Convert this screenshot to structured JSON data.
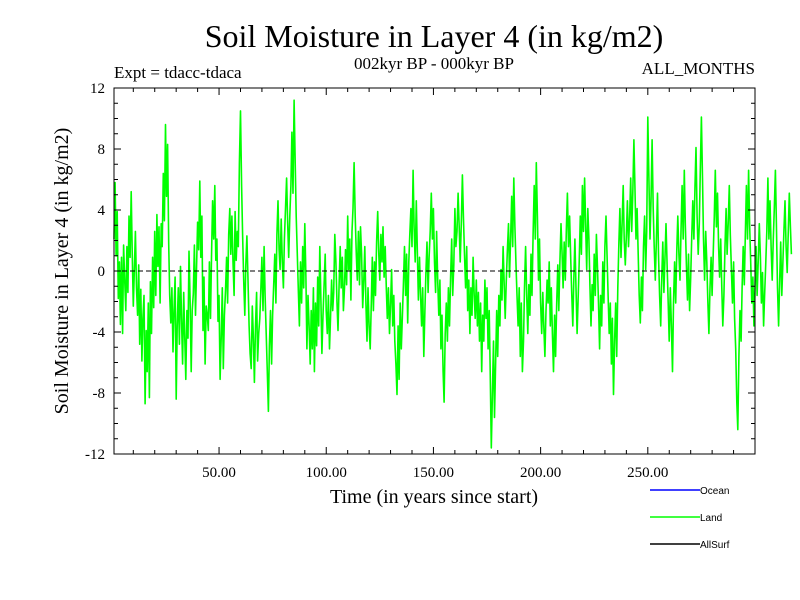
{
  "chart_data": {
    "type": "line",
    "title": "Soil Moisture in Layer 4 (in kg/m2)",
    "subtitle": "002kyr BP - 000kyr BP",
    "experiment_label": "Expt = tdacc-tdaca",
    "period_label": "ALL_MONTHS",
    "xlabel": "Time (in years since start)",
    "ylabel": "Soil Moisture in Layer 4 (in kg/m2)",
    "xlim": [
      1,
      300
    ],
    "ylim": [
      -12,
      12
    ],
    "x_ticks": [
      50,
      100,
      150,
      200,
      250
    ],
    "x_tick_labels": [
      "50.00",
      "100.00",
      "150.00",
      "200.00",
      "250.00"
    ],
    "y_ticks": [
      -12,
      -8,
      -4,
      0,
      4,
      8,
      12
    ],
    "y_tick_labels": [
      "-12",
      "-8",
      "-4",
      "0",
      "4",
      "8",
      "12"
    ],
    "zero_line": true,
    "legend_position": "bottom-right",
    "series": [
      {
        "name": "Land",
        "color": "#00ff00",
        "x_start": 1,
        "x_step": 0.5,
        "values": [
          2.1,
          5.8,
          1.0,
          3.9,
          -1.8,
          0.6,
          -3.5,
          0.9,
          -4.1,
          1.7,
          -0.6,
          -2.6,
          1.6,
          -1.4,
          3.6,
          0.9,
          5.2,
          1.3,
          -2.3,
          0.2,
          2.6,
          -1.1,
          -2.9,
          0.4,
          -4.8,
          -1.2,
          -5.9,
          -3.1,
          -1.6,
          -8.7,
          -3.9,
          -6.6,
          -2.1,
          -8.3,
          -0.7,
          -4.1,
          0.9,
          -2.4,
          2.6,
          -1.6,
          3.7,
          0.3,
          2.9,
          -2.1,
          3.1,
          1.6,
          6.4,
          3.3,
          9.6,
          4.9,
          8.3,
          1.8,
          -1.6,
          -3.4,
          -1.1,
          -5.3,
          -2.6,
          -0.4,
          -8.4,
          -3.6,
          -1.1,
          -4.8,
          0.3,
          -3.1,
          -6.1,
          -1.4,
          -4.2,
          -7.1,
          -2.6,
          -4.4,
          1.3,
          -1.9,
          -6.6,
          -2.6,
          -1.5,
          1.7,
          -2.9,
          0.1,
          3.2,
          1.4,
          5.9,
          0.9,
          3.6,
          -3.9,
          -0.4,
          -6.1,
          -2.3,
          -2.9,
          -3.9,
          0.6,
          -3.1,
          0.9,
          4.6,
          2.1,
          5.6,
          0.7,
          2.1,
          -3.3,
          -1.6,
          -7.1,
          -4.4,
          -1.1,
          -6.4,
          -2.9,
          -1.3,
          0.9,
          -2.1,
          2.4,
          4.1,
          1.1,
          3.6,
          0.6,
          -1.6,
          3.9,
          0.7,
          2.6,
          1.6,
          7.1,
          10.5,
          5.6,
          2.4,
          -0.6,
          -2.9,
          0.4,
          2.3,
          -0.6,
          -3.6,
          -5.4,
          -6.4,
          -2.3,
          -4.2,
          -7.3,
          -3.6,
          -1.4,
          -5.9,
          -4.1,
          -3.1,
          -1.1,
          0.9,
          -2.6,
          1.6,
          -1.6,
          -4.1,
          -6.6,
          -9.2,
          -4.9,
          -2.6,
          -6.1,
          -2.9,
          -0.9,
          1.1,
          -2.1,
          2.4,
          4.6,
          1.4,
          0.1,
          3.4,
          0.6,
          -1.1,
          2.1,
          4.1,
          6.1,
          3.3,
          0.9,
          3.6,
          5.6,
          9.1,
          5.1,
          11.2,
          7.1,
          3.6,
          1.1,
          -1.4,
          -3.6,
          0.6,
          -2.1,
          1.6,
          -1.1,
          3.1,
          -0.4,
          -5.1,
          -1.6,
          -3.6,
          -6.1,
          -2.6,
          -5.1,
          -1.1,
          -6.6,
          -2.1,
          -4.9,
          -0.4,
          -3.6,
          1.6,
          -1.9,
          -5.4,
          -2.9,
          -0.9,
          1.1,
          -2.6,
          -4.1,
          -1.6,
          -5.1,
          -3.1,
          -0.6,
          -2.6,
          -1.4,
          2.4,
          0.6,
          -2.1,
          -3.9,
          -0.9,
          1.6,
          -1.1,
          0.9,
          -2.6,
          -1.1,
          1.4,
          -0.9,
          3.6,
          0.1,
          2.1,
          -1.9,
          2.6,
          4.1,
          7.1,
          3.6,
          1.1,
          -0.6,
          2.6,
          -0.9,
          2.9,
          1.1,
          -2.4,
          -0.6,
          1.6,
          -2.1,
          -4.6,
          -1.1,
          -3.6,
          -5.1,
          -2.1,
          0.9,
          -2.6,
          0.6,
          -1.6,
          1.9,
          3.9,
          1.1,
          -0.6,
          2.4,
          0.6,
          2.9,
          -0.4,
          1.6,
          -1.1,
          -3.1,
          -1.1,
          -4.1,
          -2.1,
          0.1,
          -3.6,
          -1.6,
          -4.6,
          -6.1,
          -8.1,
          -3.6,
          -7.1,
          -2.1,
          -5.1,
          -3.1,
          -0.9,
          1.6,
          -1.6,
          1.1,
          -3.4,
          0.6,
          2.4,
          4.1,
          1.6,
          6.6,
          2.9,
          0.6,
          4.6,
          1.4,
          -1.9,
          0.9,
          -1.6,
          -3.6,
          -1.1,
          -5.6,
          -2.6,
          -0.1,
          1.9,
          -1.4,
          0.9,
          2.6,
          5.1,
          2.1,
          4.1,
          0.6,
          -1.4,
          2.6,
          -0.6,
          -2.9,
          -0.6,
          -5.1,
          -2.9,
          -6.6,
          -8.6,
          -4.1,
          -2.1,
          -4.6,
          -1.1,
          -3.6,
          -0.4,
          2.1,
          -1.6,
          0.4,
          4.1,
          1.6,
          2.6,
          5.1,
          2.9,
          0.6,
          3.1,
          6.3,
          3.6,
          1.1,
          -1.1,
          1.6,
          -2.6,
          -0.6,
          -4.1,
          -1.1,
          -2.9,
          0.9,
          -1.6,
          -3.1,
          -0.6,
          -3.6,
          -1.4,
          -4.6,
          -2.1,
          -6.6,
          -2.9,
          -4.6,
          -0.6,
          -3.1,
          -1.1,
          -5.1,
          -2.6,
          -6.6,
          -11.6,
          -8.1,
          -4.6,
          -9.6,
          -6.1,
          -2.6,
          -5.6,
          -1.6,
          -3.6,
          0.1,
          -1.9,
          1.6,
          -0.9,
          -3.1,
          -0.6,
          1.4,
          3.1,
          -0.4,
          2.1,
          4.9,
          1.6,
          6.1,
          2.9,
          0.4,
          -1.6,
          -3.6,
          -1.1,
          -5.6,
          -2.1,
          -6.6,
          -4.6,
          -1.1,
          1.6,
          -1.6,
          -4.1,
          -0.9,
          -2.9,
          1.1,
          -1.6,
          2.4,
          5.6,
          2.1,
          7.1,
          3.6,
          -0.6,
          2.1,
          -2.1,
          -4.1,
          -1.4,
          -3.6,
          -5.6,
          -2.6,
          -0.6,
          -2.1,
          0.6,
          -3.6,
          -1.1,
          -4.1,
          -6.6,
          -2.9,
          -5.6,
          -2.1,
          0.4,
          -2.6,
          0.6,
          3.1,
          1.1,
          -1.1,
          1.9,
          -0.6,
          2.6,
          5.1,
          1.6,
          3.6,
          1.1,
          -1.4,
          -3.6,
          -0.6,
          2.1,
          -1.1,
          -4.1,
          -1.9,
          0.6,
          3.6,
          1.1,
          5.6,
          2.6,
          6.1,
          3.1,
          0.1,
          4.1,
          2.1,
          -0.9,
          -3.6,
          -0.9,
          -2.6,
          1.1,
          -1.6,
          2.4,
          0.4,
          -2.1,
          -5.1,
          -1.6,
          -3.6,
          0.6,
          -2.1,
          1.6,
          3.6,
          0.9,
          -1.6,
          -4.1,
          -2.1,
          -6.1,
          -3.1,
          -8.1,
          -4.6,
          -2.1,
          -5.6,
          -1.1,
          1.9,
          4.1,
          0.9,
          3.1,
          5.6,
          2.1,
          0.4,
          2.4,
          4.6,
          1.6,
          3.4,
          6.1,
          2.6,
          5.1,
          8.6,
          5.6,
          2.1,
          4.1,
          1.1,
          -1.6,
          -3.4,
          -0.4,
          -2.6,
          1.6,
          3.6,
          0.1,
          2.6,
          10.1,
          6.1,
          2.1,
          4.6,
          8.6,
          4.1,
          1.6,
          -0.6,
          2.1,
          5.1,
          1.1,
          -1.6,
          -3.6,
          -0.6,
          1.9,
          -1.4,
          0.9,
          3.1,
          0.4,
          -2.1,
          -4.6,
          -1.1,
          -3.6,
          -6.6,
          -2.1,
          0.6,
          -2.1,
          1.4,
          3.6,
          1.1,
          -0.6,
          2.6,
          5.6,
          2.1,
          6.6,
          3.1,
          0.4,
          -1.9,
          1.1,
          -2.6,
          -0.4,
          2.4,
          4.6,
          2.1,
          5.6,
          8.1,
          3.6,
          1.1,
          3.1,
          6.6,
          10.1,
          6.1,
          2.1,
          -0.6,
          2.6,
          0.6,
          -1.9,
          -4.1,
          -1.1,
          0.9,
          -1.6,
          1.1,
          3.6,
          6.6,
          2.9,
          5.1,
          1.6,
          -0.4,
          2.1,
          -1.1,
          -3.6,
          -1.6,
          1.6,
          4.1,
          1.1,
          3.1,
          5.6,
          2.4,
          0.1,
          -2.1,
          0.6,
          -3.1,
          -5.1,
          -8.6,
          -10.4,
          -5.6,
          -2.6,
          -4.6,
          -1.1,
          1.6,
          -0.9,
          2.6,
          5.6,
          2.1,
          6.6,
          3.1,
          0.6,
          -2.1,
          -0.4,
          -3.6,
          -1.1,
          1.6,
          -1.6,
          0.6,
          3.1,
          0.9,
          -2.1,
          -0.1,
          -3.6,
          -1.6,
          0.4,
          2.6,
          6.1,
          2.1,
          4.6,
          1.6,
          -0.6,
          1.9,
          4.1,
          6.6,
          3.1,
          -1.1,
          -3.6,
          -0.6,
          1.9,
          -1.6,
          0.6,
          2.6,
          4.6,
          1.6,
          -0.1,
          2.4,
          5.1,
          2.9,
          1.1
        ]
      },
      {
        "name": "Ocean",
        "color": "#0000ff",
        "values": []
      },
      {
        "name": "AllSurf",
        "color": "#000000",
        "values": []
      }
    ]
  }
}
